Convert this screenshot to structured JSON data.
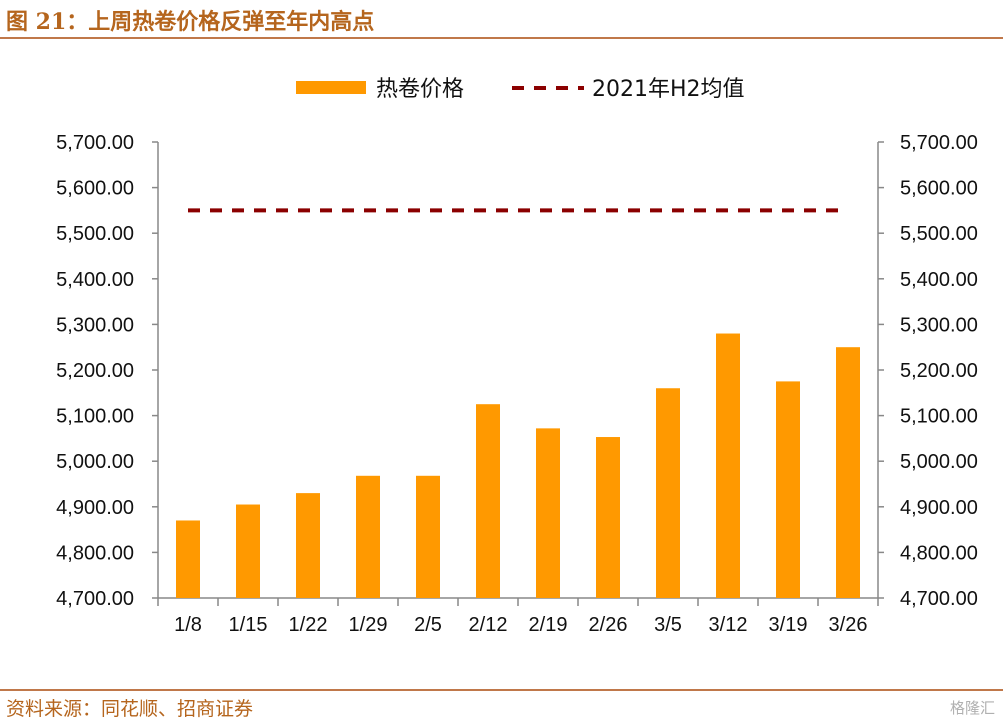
{
  "header": {
    "title": "图 21：上周热卷价格反弹至年内高点"
  },
  "footer": {
    "source": "资料来源：同花顺、招商证券",
    "watermark": "格隆汇"
  },
  "colors": {
    "bar": "#ff9900",
    "reference_line": "#8b0000",
    "title": "#b5651d",
    "rule": "#c0784a"
  },
  "chart_data": {
    "type": "bar",
    "title": "",
    "xlabel": "",
    "ylabel": "",
    "categories": [
      "1/8",
      "1/15",
      "1/22",
      "1/29",
      "2/5",
      "2/12",
      "2/19",
      "2/26",
      "3/5",
      "3/12",
      "3/19",
      "3/26"
    ],
    "series": [
      {
        "name": "热卷价格",
        "type": "bar",
        "color": "#ff9900",
        "values": [
          4870,
          4905,
          4930,
          4968,
          4968,
          5125,
          5072,
          5053,
          5160,
          5280,
          5175,
          5250
        ]
      },
      {
        "name": "2021年H2均值",
        "type": "line",
        "style": "dashed",
        "color": "#8b0000",
        "values": [
          5550,
          5550,
          5550,
          5550,
          5550,
          5550,
          5550,
          5550,
          5550,
          5550,
          5550,
          5550
        ]
      }
    ],
    "ylim": [
      4700,
      5700
    ],
    "yticks": [
      "4,700.00",
      "4,800.00",
      "4,900.00",
      "5,000.00",
      "5,100.00",
      "5,200.00",
      "5,300.00",
      "5,400.00",
      "5,500.00",
      "5,600.00",
      "5,700.00"
    ],
    "secondary_yticks": [
      "4,700.00",
      "4,800.00",
      "4,900.00",
      "5,000.00",
      "5,100.00",
      "5,200.00",
      "5,300.00",
      "5,400.00",
      "5,500.00",
      "5,600.00",
      "5,700.00"
    ],
    "legend_position": "top-center",
    "grid": false
  }
}
